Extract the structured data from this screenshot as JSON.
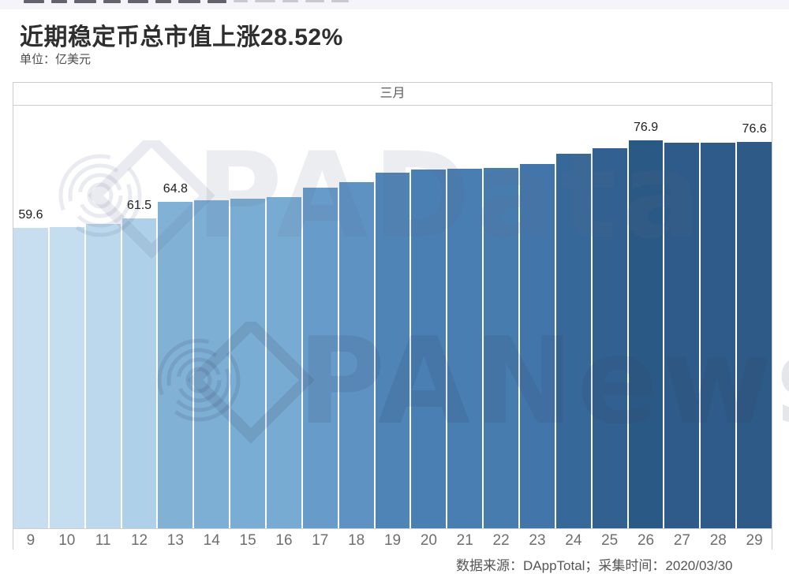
{
  "header": {
    "title": "近期稳定币总市值上涨28.52%",
    "unit_label": "单位：亿美元"
  },
  "chart": {
    "period_label": "三月",
    "watermark_top": "PAData",
    "watermark_bottom": "PANews"
  },
  "chart_data": {
    "type": "bar",
    "title": "近期稳定币总市值上涨28.52%",
    "unit": "亿美元",
    "group_label": "三月",
    "categories": [
      9,
      10,
      11,
      12,
      13,
      14,
      15,
      16,
      17,
      18,
      19,
      20,
      21,
      22,
      23,
      24,
      25,
      26,
      27,
      28,
      29
    ],
    "values": [
      59.6,
      59.8,
      60.4,
      61.5,
      64.8,
      65.1,
      65.4,
      65.6,
      67.5,
      68.6,
      70.5,
      71.1,
      71.3,
      71.5,
      72.2,
      74.3,
      75.4,
      76.9,
      76.4,
      76.4,
      76.6
    ],
    "bar_labels": [
      "59.6",
      "",
      "",
      "61.5",
      "64.8",
      "",
      "",
      "",
      "",
      "",
      "",
      "",
      "",
      "",
      "",
      "",
      "",
      "76.9",
      "",
      "",
      "76.6"
    ],
    "xlabel": "",
    "ylabel": "亿美元",
    "ylim": [
      0,
      83.8
    ],
    "grid": false,
    "legend": "none",
    "color_stops": [
      [
        59.6,
        "#C6DEF0"
      ],
      [
        62.0,
        "#A8CDE7"
      ],
      [
        65.0,
        "#7EB0D5"
      ],
      [
        68.0,
        "#6297C7"
      ],
      [
        71.0,
        "#4A80B3"
      ],
      [
        73.0,
        "#3D70A4"
      ],
      [
        75.0,
        "#346394"
      ],
      [
        77.0,
        "#2B5884"
      ]
    ],
    "label_color": "#1d1d1d",
    "axis_line_color": "#cccccc",
    "tick_label_color": "#6e6e6e"
  },
  "footer": {
    "source_text": "数据来源：DAppTotal；采集时间：2020/03/30"
  }
}
